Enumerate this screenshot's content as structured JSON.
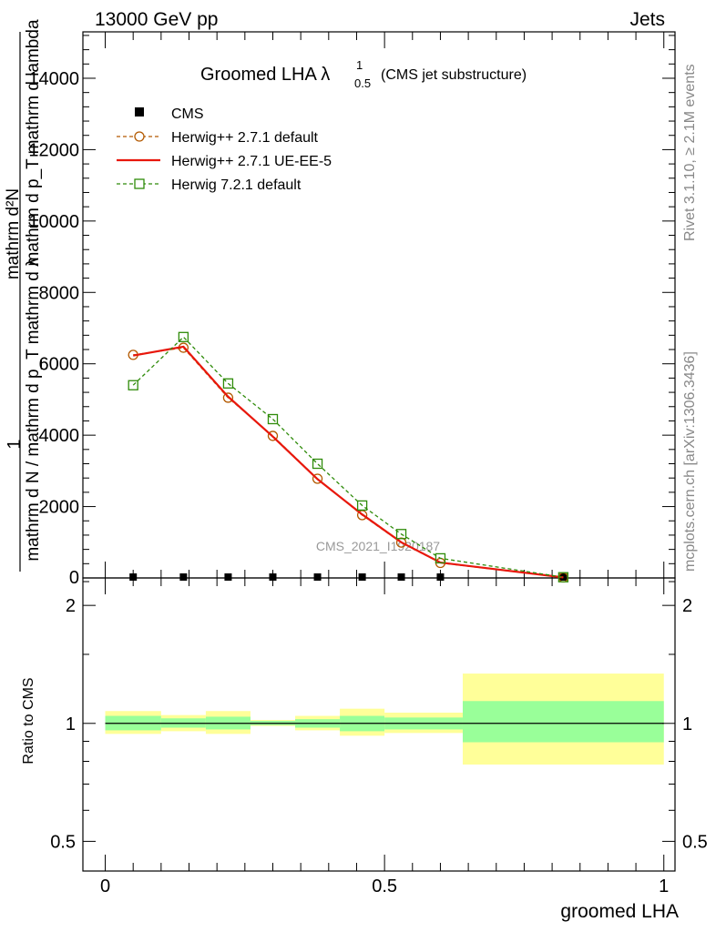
{
  "header": {
    "energy": "13000 GeV pp",
    "process": "Jets",
    "side_version": "Rivet 3.1.10, ≥ 2.1M events",
    "side_site": "mcplots.cern.ch [arXiv:1306.3436]",
    "watermark": "CMS_2021_I1920187"
  },
  "title": {
    "main": "Groomed LHA λ",
    "sup": "1",
    "sub": "0.5",
    "note": "(CMS jet substructure)"
  },
  "ylabel_top": {
    "numerator": "1",
    "denominator": "mathrm d N / mathrm d p_T mathrm d λ",
    "part2": "mathrm d²N",
    "part3": "mathrm d p_T mathrm d lambda"
  },
  "legend": [
    {
      "name": "CMS",
      "color": "#000000",
      "marker": "filled-square"
    },
    {
      "name": "Herwig++ 2.7.1 default",
      "color": "#b35900",
      "marker": "open-circle"
    },
    {
      "name": "Herwig++ 2.7.1 UE-EE-5",
      "color": "#e8170c",
      "marker": "line"
    },
    {
      "name": "Herwig 7.2.1 default",
      "color": "#2e8b09",
      "marker": "open-square"
    }
  ],
  "chart_data": [
    {
      "type": "line",
      "panel": "main",
      "x": [
        0.05,
        0.14,
        0.22,
        0.3,
        0.38,
        0.46,
        0.53,
        0.6,
        0.82
      ],
      "series": [
        {
          "name": "CMS",
          "values": [
            0,
            0,
            0,
            0,
            0,
            0,
            0,
            0,
            0
          ]
        },
        {
          "name": "Herwig++ 2.7.1 default",
          "values": [
            6250,
            6450,
            5050,
            3980,
            2780,
            1760,
            990,
            420,
            15
          ]
        },
        {
          "name": "Herwig++ 2.7.1 UE-EE-5",
          "values": [
            6230,
            6480,
            5080,
            3960,
            2770,
            1780,
            1000,
            430,
            15
          ]
        },
        {
          "name": "Herwig 7.2.1 default",
          "values": [
            5400,
            6750,
            5450,
            4450,
            3200,
            2030,
            1230,
            550,
            20
          ]
        }
      ],
      "xlim": [
        -0.04,
        1.02
      ],
      "ylim": [
        0,
        15300
      ],
      "yticks": [
        "2000",
        "4000",
        "6000",
        "8000",
        "10000",
        "12000",
        "14000"
      ],
      "ytick_values": [
        2000,
        4000,
        6000,
        8000,
        10000,
        12000,
        14000
      ],
      "zero_label": "0"
    },
    {
      "type": "area",
      "panel": "ratio",
      "ylabel": "Ratio to CMS",
      "xlabel": "groomed LHA",
      "ylim": [
        0.42,
        2.35
      ],
      "yscale": "log",
      "yticks": [
        "0.5",
        "1",
        "2"
      ],
      "ytick_values": [
        0.5,
        1,
        2
      ],
      "xticks": [
        "0",
        "0.5",
        "1"
      ],
      "xtick_values": [
        0,
        0.5,
        1
      ],
      "bins": [
        {
          "lo": 0.0,
          "hi": 0.1,
          "stat_lo": 0.96,
          "stat_hi": 1.045,
          "tot_lo": 0.94,
          "tot_hi": 1.075
        },
        {
          "lo": 0.1,
          "hi": 0.18,
          "stat_lo": 0.975,
          "stat_hi": 1.03,
          "tot_lo": 0.955,
          "tot_hi": 1.05
        },
        {
          "lo": 0.18,
          "hi": 0.26,
          "stat_lo": 0.965,
          "stat_hi": 1.04,
          "tot_lo": 0.94,
          "tot_hi": 1.075
        },
        {
          "lo": 0.26,
          "hi": 0.34,
          "stat_lo": 0.99,
          "stat_hi": 1.015,
          "tot_lo": 0.985,
          "tot_hi": 1.02
        },
        {
          "lo": 0.34,
          "hi": 0.42,
          "stat_lo": 0.975,
          "stat_hi": 1.025,
          "tot_lo": 0.96,
          "tot_hi": 1.045
        },
        {
          "lo": 0.42,
          "hi": 0.5,
          "stat_lo": 0.955,
          "stat_hi": 1.045,
          "tot_lo": 0.93,
          "tot_hi": 1.09
        },
        {
          "lo": 0.5,
          "hi": 0.64,
          "stat_lo": 0.965,
          "stat_hi": 1.035,
          "tot_lo": 0.945,
          "tot_hi": 1.065
        },
        {
          "lo": 0.64,
          "hi": 1.0,
          "stat_lo": 0.895,
          "stat_hi": 1.14,
          "tot_lo": 0.785,
          "tot_hi": 1.34
        }
      ]
    }
  ],
  "colors": {
    "stat_band": "#99ff99",
    "total_band": "#ffff99"
  }
}
